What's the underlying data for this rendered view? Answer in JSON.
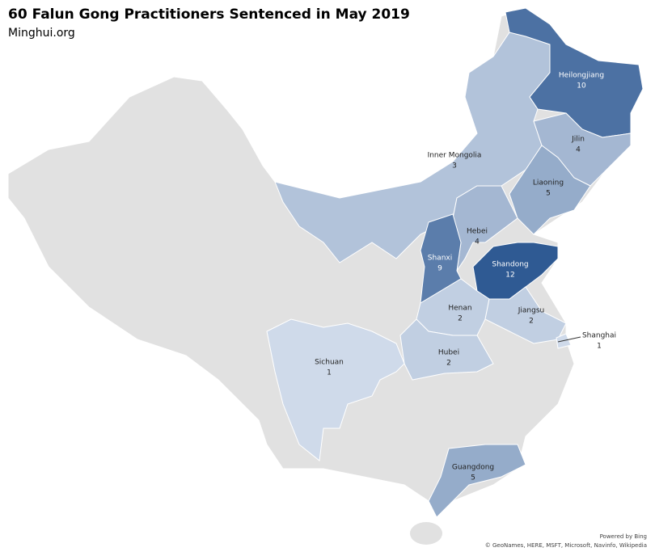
{
  "header": {
    "title": "60 Falun Gong Practitioners Sentenced in May 2019",
    "subtitle": "Minghui.org"
  },
  "regions": [
    {
      "name": "Inner Mongolia",
      "value": 3
    },
    {
      "name": "Heilongjiang",
      "value": 10
    },
    {
      "name": "Jilin",
      "value": 4
    },
    {
      "name": "Liaoning",
      "value": 5
    },
    {
      "name": "Hebei",
      "value": 4
    },
    {
      "name": "Shanxi",
      "value": 9
    },
    {
      "name": "Shandong",
      "value": 12
    },
    {
      "name": "Henan",
      "value": 2
    },
    {
      "name": "Jiangsu",
      "value": 2
    },
    {
      "name": "Shanghai",
      "value": 1
    },
    {
      "name": "Hubei",
      "value": 2
    },
    {
      "name": "Sichuan",
      "value": 1
    },
    {
      "name": "Guangdong",
      "value": 5
    }
  ],
  "credits": [
    "Powered by Bing",
    "© GeoNames, HERE, MSFT, Microsoft, Navinfo, Wikipedia"
  ]
}
